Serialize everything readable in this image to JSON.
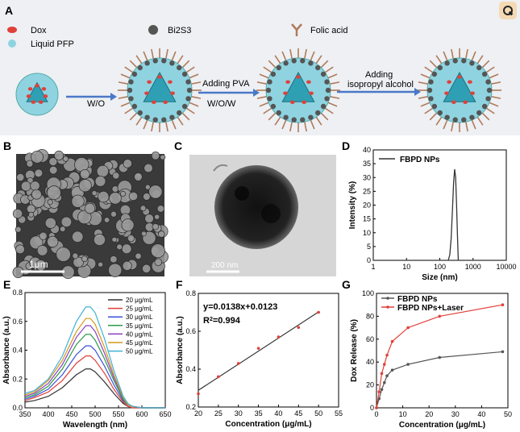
{
  "panel_letters": [
    "A",
    "B",
    "C",
    "D",
    "E",
    "F",
    "G"
  ],
  "scheme": {
    "legend": {
      "dox": "Dox",
      "pfp": "Liquid PFP",
      "bis": "Bi2S3",
      "folic": "Folic acid"
    },
    "step1": "W/O",
    "step2_top": "Adding PVA",
    "step2_bottom": "W/O/W",
    "step3_top": "Adding",
    "step3_bottom": "isopropyl alcohol"
  },
  "micro": {
    "sem_scale": "1μm",
    "tem_scale": "200 nm"
  },
  "colors": {
    "red": "#e0403a",
    "dark": "#333333",
    "teal": "#2fa0b4",
    "teal_light": "#8fd3e0",
    "ligand": "#b07a5a",
    "bi": "#555555"
  },
  "chart_data": [
    {
      "panel": "D",
      "type": "line",
      "xlabel": "Size (nm)",
      "ylabel": "Intensity (%)",
      "xscale": "log",
      "xlim": [
        1,
        10000
      ],
      "ylim": [
        0,
        40
      ],
      "xticks": [
        "1",
        "10",
        "100",
        "1000",
        "10000"
      ],
      "yticks": [
        "0",
        "5",
        "10",
        "15",
        "20",
        "25",
        "30",
        "35",
        "40"
      ],
      "legend": "top-left",
      "series": [
        {
          "name": "FBPD NPs",
          "color": "#333333",
          "x": [
            1,
            180,
            200,
            220,
            240,
            260,
            280,
            300,
            320,
            340,
            360,
            1000,
            10000
          ],
          "y": [
            0,
            0,
            2,
            8,
            18,
            28,
            33,
            30,
            20,
            9,
            0,
            0,
            0
          ]
        }
      ]
    },
    {
      "panel": "E",
      "type": "line",
      "xlabel": "Wavelength (nm)",
      "ylabel": "Absorbance (a.u.)",
      "xlim": [
        350,
        650
      ],
      "ylim": [
        0,
        0.8
      ],
      "xticks": [
        "350",
        "400",
        "450",
        "500",
        "550",
        "600",
        "650"
      ],
      "yticks": [
        "0.0",
        "0.2",
        "0.4",
        "0.6",
        "0.8"
      ],
      "legend": "top-right",
      "x": [
        350,
        370,
        400,
        430,
        460,
        480,
        490,
        500,
        520,
        540,
        560,
        570,
        580,
        600,
        620,
        650
      ],
      "series": [
        {
          "name": "20 μg/mL",
          "color": "#333333",
          "y": [
            0.04,
            0.05,
            0.08,
            0.14,
            0.23,
            0.27,
            0.27,
            0.25,
            0.18,
            0.1,
            0.03,
            0.01,
            0.0,
            0.0,
            0.0,
            0.0
          ]
        },
        {
          "name": "25 μg/mL",
          "color": "#e0403a",
          "y": [
            0.05,
            0.07,
            0.11,
            0.19,
            0.31,
            0.36,
            0.36,
            0.33,
            0.24,
            0.13,
            0.04,
            0.01,
            0.0,
            0.0,
            0.0,
            0.0
          ]
        },
        {
          "name": "30 μg/mL",
          "color": "#3a50d8",
          "y": [
            0.06,
            0.08,
            0.13,
            0.23,
            0.37,
            0.43,
            0.43,
            0.4,
            0.29,
            0.16,
            0.05,
            0.02,
            0.01,
            0.0,
            0.0,
            0.0
          ]
        },
        {
          "name": "35 μg/mL",
          "color": "#2e9a48",
          "y": [
            0.07,
            0.09,
            0.15,
            0.27,
            0.44,
            0.51,
            0.51,
            0.47,
            0.34,
            0.19,
            0.06,
            0.02,
            0.01,
            0.0,
            0.0,
            0.0
          ]
        },
        {
          "name": "40 μg/mL",
          "color": "#8a3fc0",
          "y": [
            0.08,
            0.1,
            0.17,
            0.3,
            0.49,
            0.57,
            0.57,
            0.53,
            0.38,
            0.21,
            0.07,
            0.02,
            0.01,
            0.0,
            0.0,
            0.0
          ]
        },
        {
          "name": "45 μg/mL",
          "color": "#d49a1a",
          "y": [
            0.09,
            0.11,
            0.19,
            0.33,
            0.53,
            0.62,
            0.62,
            0.58,
            0.42,
            0.23,
            0.07,
            0.02,
            0.01,
            0.0,
            0.0,
            0.0
          ]
        },
        {
          "name": "50 μg/mL",
          "color": "#42b0d8",
          "y": [
            0.1,
            0.12,
            0.2,
            0.36,
            0.6,
            0.7,
            0.7,
            0.66,
            0.48,
            0.26,
            0.08,
            0.03,
            0.01,
            0.0,
            0.0,
            0.0
          ]
        }
      ]
    },
    {
      "panel": "F",
      "type": "scatter",
      "xlabel": "Concentration (μg/mL)",
      "ylabel": "Absorbance (a.u.)",
      "xlim": [
        20,
        55
      ],
      "ylim": [
        0.2,
        0.8
      ],
      "xticks": [
        "20",
        "25",
        "30",
        "35",
        "40",
        "45",
        "50",
        "55"
      ],
      "yticks": [
        "0.2",
        "0.4",
        "0.6",
        "0.8"
      ],
      "equation": "y=0.0138x+0.0123",
      "r2_prefix": "R",
      "r2_sup": "2",
      "r2_suffix": "=0.994",
      "x": [
        20,
        25,
        30,
        35,
        40,
        45,
        50
      ],
      "y": [
        0.27,
        0.36,
        0.43,
        0.51,
        0.57,
        0.62,
        0.7
      ],
      "fit": {
        "slope": 0.0138,
        "intercept": 0.0123,
        "color": "#333333"
      },
      "point_color": "#e0403a"
    },
    {
      "panel": "G",
      "type": "line",
      "xlabel": "Concentration (μg/mL)",
      "ylabel": "Dox Release (%)",
      "xlim": [
        0,
        50
      ],
      "ylim": [
        0,
        100
      ],
      "xticks": [
        "0",
        "10",
        "20",
        "30",
        "40",
        "50"
      ],
      "yticks": [
        "0",
        "20",
        "40",
        "60",
        "80",
        "100"
      ],
      "legend": "top-left",
      "series": [
        {
          "name": "FBPD NPs",
          "color": "#555555",
          "x": [
            0,
            1,
            2,
            3,
            4,
            6,
            12,
            24,
            48
          ],
          "y": [
            0,
            8,
            16,
            22,
            28,
            33,
            38,
            44,
            49
          ]
        },
        {
          "name": "FBPD NPs+Laser",
          "color": "#e0403a",
          "x": [
            0,
            1,
            2,
            3,
            4,
            6,
            12,
            24,
            48
          ],
          "y": [
            0,
            14,
            30,
            38,
            46,
            58,
            70,
            80,
            90
          ]
        }
      ]
    }
  ]
}
